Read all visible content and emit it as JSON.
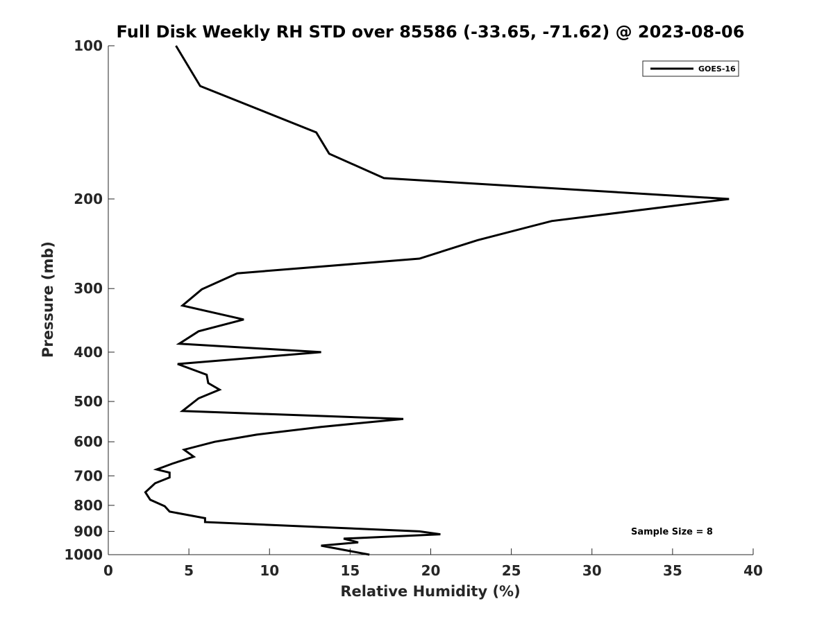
{
  "chart_data": {
    "type": "line",
    "title": "Full Disk Weekly RH STD over 85586 (-33.65, -71.62) @ 2023-08-06",
    "xlabel": "Relative Humidity (%)",
    "ylabel": "Pressure (mb)",
    "xlim": [
      0,
      40
    ],
    "ylim": [
      100,
      1000
    ],
    "y_scale": "log",
    "y_reversed": true,
    "x_ticks": [
      0,
      5,
      10,
      15,
      20,
      25,
      30,
      35,
      40
    ],
    "y_ticks": [
      100,
      200,
      300,
      400,
      500,
      600,
      700,
      800,
      900,
      1000
    ],
    "grid": false,
    "legend": {
      "position": "top-right",
      "entries": [
        "GOES-16"
      ]
    },
    "annotation": "Sample Size = 8",
    "series": [
      {
        "name": "GOES-16",
        "color": "#000000",
        "points": [
          [
            4.2,
            100
          ],
          [
            5.7,
            120
          ],
          [
            12.9,
            148
          ],
          [
            13.7,
            163
          ],
          [
            17.1,
            182
          ],
          [
            38.5,
            200
          ],
          [
            27.5,
            221
          ],
          [
            22.9,
            241
          ],
          [
            19.3,
            262
          ],
          [
            8.0,
            280
          ],
          [
            5.8,
            301
          ],
          [
            4.6,
            324
          ],
          [
            8.4,
            345
          ],
          [
            5.6,
            364
          ],
          [
            4.4,
            385
          ],
          [
            13.2,
            400
          ],
          [
            4.3,
            422
          ],
          [
            6.1,
            443
          ],
          [
            6.2,
            460
          ],
          [
            6.9,
            474
          ],
          [
            5.6,
            493
          ],
          [
            4.6,
            522
          ],
          [
            18.3,
            541
          ],
          [
            13.2,
            561
          ],
          [
            9.2,
            581
          ],
          [
            6.6,
            600
          ],
          [
            4.7,
            622
          ],
          [
            5.3,
            642
          ],
          [
            4.0,
            662
          ],
          [
            3.0,
            680
          ],
          [
            3.8,
            690
          ],
          [
            3.8,
            705
          ],
          [
            2.9,
            724
          ],
          [
            2.3,
            754
          ],
          [
            2.6,
            780
          ],
          [
            3.5,
            803
          ],
          [
            3.8,
            823
          ],
          [
            6.0,
            848
          ],
          [
            6.0,
            863
          ],
          [
            19.3,
            900
          ],
          [
            20.6,
            912
          ],
          [
            14.6,
            930
          ],
          [
            15.5,
            946
          ],
          [
            13.2,
            960
          ],
          [
            16.2,
            1000
          ]
        ]
      }
    ]
  }
}
